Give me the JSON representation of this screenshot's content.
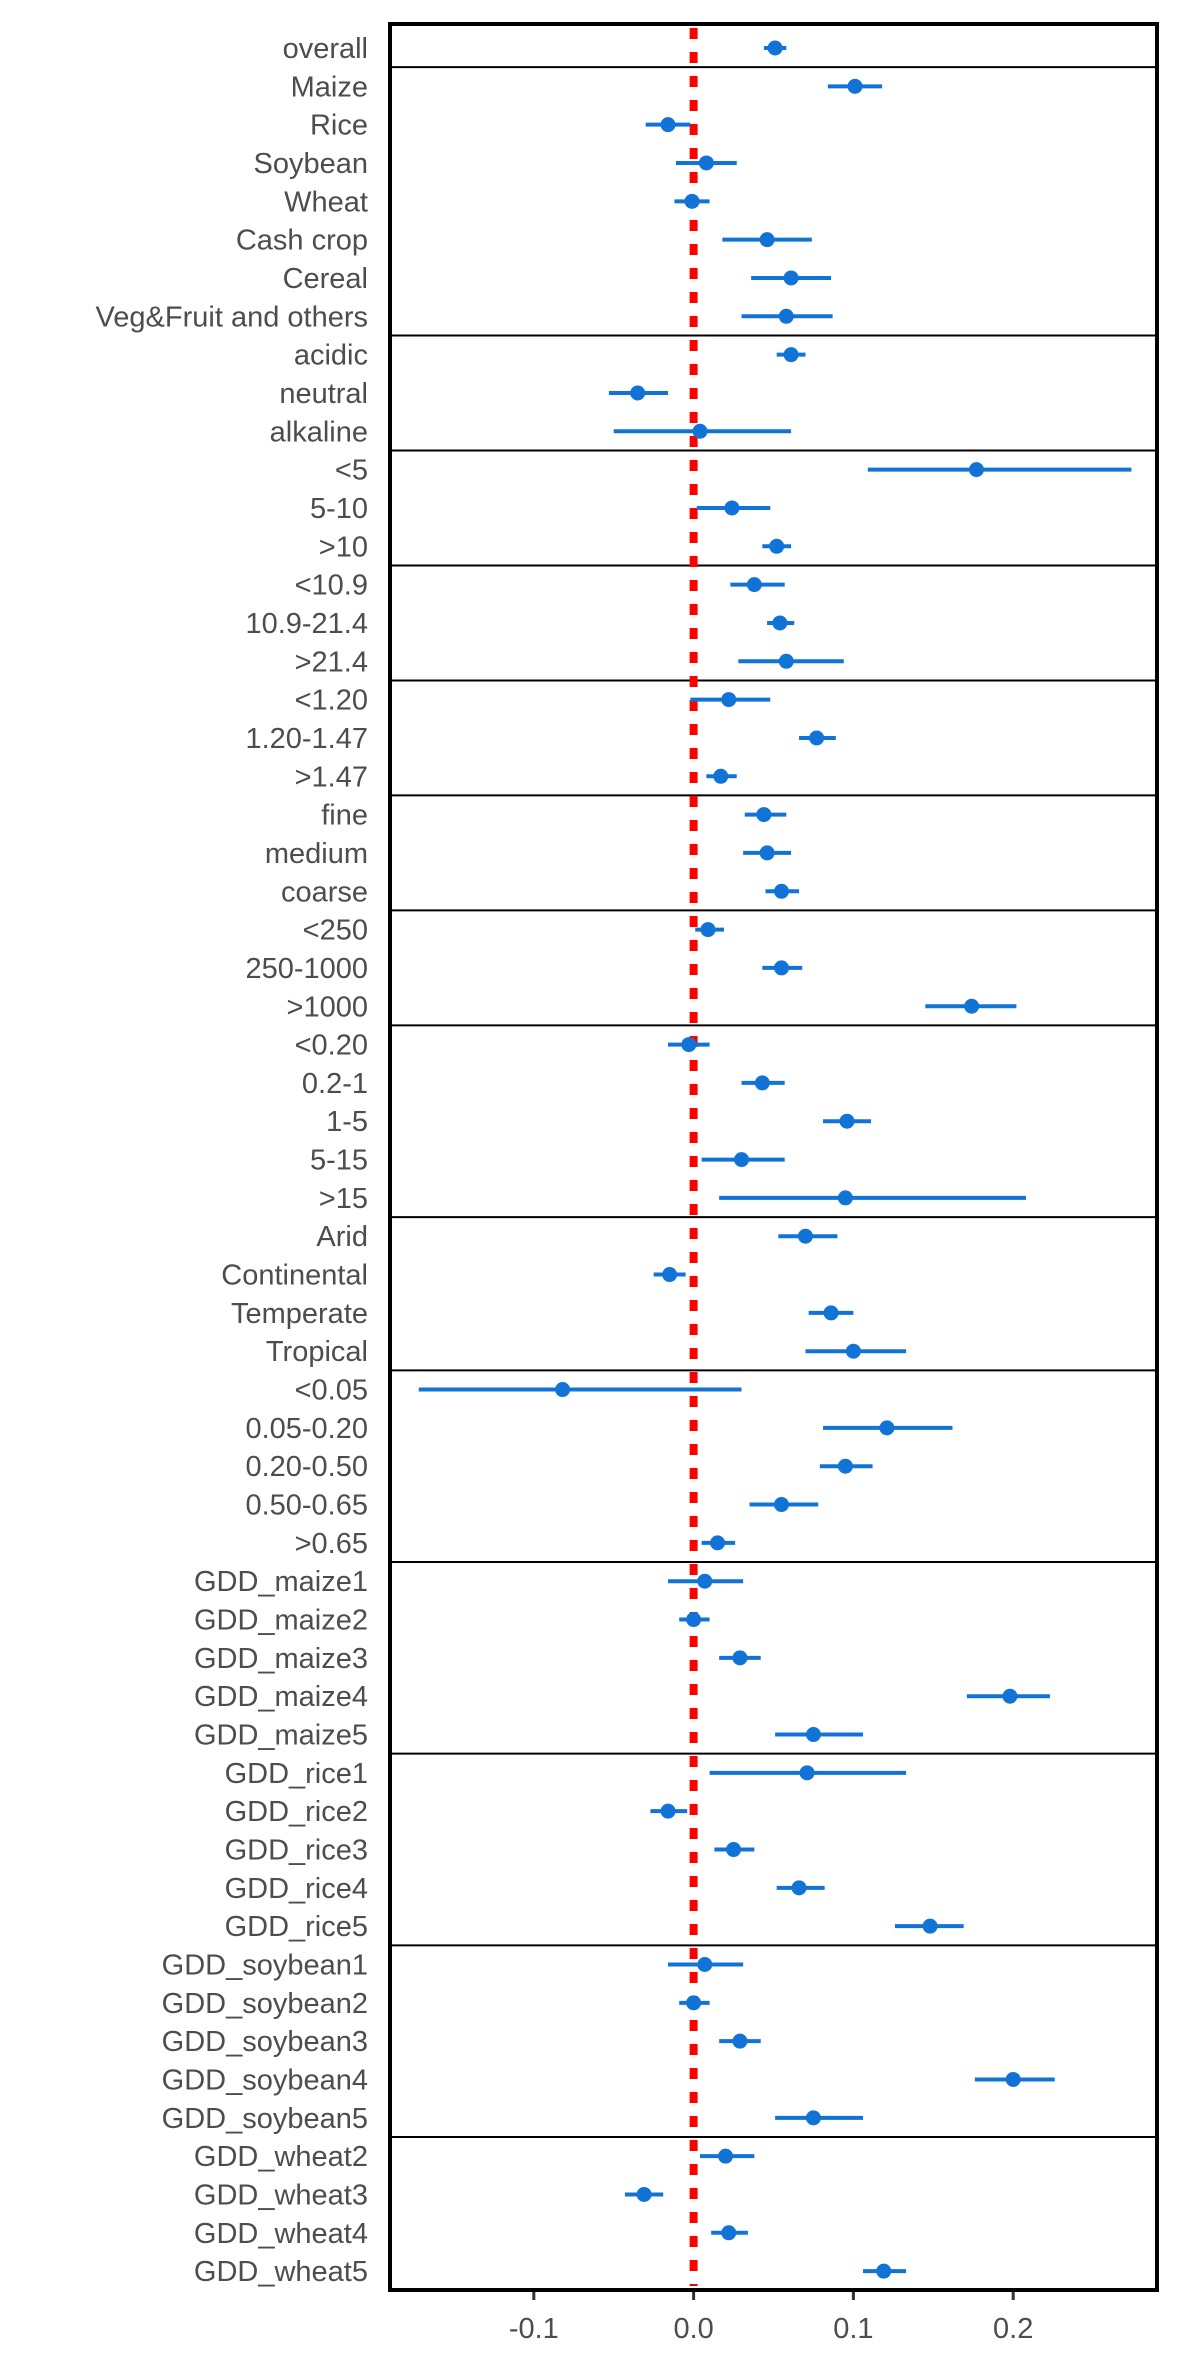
{
  "chart_data": {
    "type": "forest",
    "title": "",
    "xlabel": "",
    "ylabel": "",
    "xlim": [
      -0.19,
      0.29
    ],
    "xticks": [
      -0.1,
      0.0,
      0.1,
      0.2
    ],
    "xtick_labels": [
      "-0.1",
      "0.0",
      "0.1",
      "0.2"
    ],
    "reference_line": 0,
    "colors": {
      "point": "#1273d6",
      "reference": "#ff0000",
      "frame": "#000000"
    },
    "groups": [
      {
        "items": [
          {
            "label": "overall",
            "estimate": 0.051,
            "low": 0.044,
            "high": 0.058
          }
        ]
      },
      {
        "items": [
          {
            "label": "Maize",
            "estimate": 0.101,
            "low": 0.084,
            "high": 0.118
          },
          {
            "label": "Rice",
            "estimate": -0.016,
            "low": -0.03,
            "high": -0.002
          },
          {
            "label": "Soybean",
            "estimate": 0.008,
            "low": -0.011,
            "high": 0.027
          },
          {
            "label": "Wheat",
            "estimate": -0.001,
            "low": -0.012,
            "high": 0.01
          },
          {
            "label": "Cash crop",
            "estimate": 0.046,
            "low": 0.018,
            "high": 0.074
          },
          {
            "label": "Cereal",
            "estimate": 0.061,
            "low": 0.036,
            "high": 0.086
          },
          {
            "label": "Veg&Fruit and others",
            "estimate": 0.058,
            "low": 0.03,
            "high": 0.087
          }
        ]
      },
      {
        "items": [
          {
            "label": "acidic",
            "estimate": 0.061,
            "low": 0.052,
            "high": 0.07
          },
          {
            "label": "neutral",
            "estimate": -0.035,
            "low": -0.053,
            "high": -0.016
          },
          {
            "label": "alkaline",
            "estimate": 0.004,
            "low": -0.05,
            "high": 0.061
          }
        ]
      },
      {
        "items": [
          {
            "label": "<5",
            "estimate": 0.177,
            "low": 0.109,
            "high": 0.274
          },
          {
            "label": "5-10",
            "estimate": 0.024,
            "low": 0.002,
            "high": 0.048
          },
          {
            "label": ">10",
            "estimate": 0.052,
            "low": 0.043,
            "high": 0.061
          }
        ]
      },
      {
        "items": [
          {
            "label": "<10.9",
            "estimate": 0.038,
            "low": 0.023,
            "high": 0.057
          },
          {
            "label": "10.9-21.4",
            "estimate": 0.054,
            "low": 0.046,
            "high": 0.063
          },
          {
            "label": ">21.4",
            "estimate": 0.058,
            "low": 0.028,
            "high": 0.094
          }
        ]
      },
      {
        "items": [
          {
            "label": "<1.20",
            "estimate": 0.022,
            "low": -0.002,
            "high": 0.048
          },
          {
            "label": "1.20-1.47",
            "estimate": 0.077,
            "low": 0.066,
            "high": 0.089
          },
          {
            "label": ">1.47",
            "estimate": 0.017,
            "low": 0.008,
            "high": 0.027
          }
        ]
      },
      {
        "items": [
          {
            "label": "fine",
            "estimate": 0.044,
            "low": 0.032,
            "high": 0.058
          },
          {
            "label": "medium",
            "estimate": 0.046,
            "low": 0.031,
            "high": 0.061
          },
          {
            "label": "coarse",
            "estimate": 0.055,
            "low": 0.045,
            "high": 0.066
          }
        ]
      },
      {
        "items": [
          {
            "label": "<250",
            "estimate": 0.009,
            "low": 0.001,
            "high": 0.019
          },
          {
            "label": "250-1000",
            "estimate": 0.055,
            "low": 0.043,
            "high": 0.068
          },
          {
            "label": ">1000",
            "estimate": 0.174,
            "low": 0.145,
            "high": 0.202
          }
        ]
      },
      {
        "items": [
          {
            "label": "<0.20",
            "estimate": -0.003,
            "low": -0.016,
            "high": 0.01
          },
          {
            "label": "0.2-1",
            "estimate": 0.043,
            "low": 0.03,
            "high": 0.057
          },
          {
            "label": "1-5",
            "estimate": 0.096,
            "low": 0.081,
            "high": 0.111
          },
          {
            "label": "5-15",
            "estimate": 0.03,
            "low": 0.005,
            "high": 0.057
          },
          {
            "label": ">15",
            "estimate": 0.095,
            "low": 0.016,
            "high": 0.208
          }
        ]
      },
      {
        "items": [
          {
            "label": "Arid",
            "estimate": 0.07,
            "low": 0.053,
            "high": 0.09
          },
          {
            "label": "Continental",
            "estimate": -0.015,
            "low": -0.025,
            "high": -0.005
          },
          {
            "label": "Temperate",
            "estimate": 0.086,
            "low": 0.072,
            "high": 0.1
          },
          {
            "label": "Tropical",
            "estimate": 0.1,
            "low": 0.07,
            "high": 0.133
          }
        ]
      },
      {
        "items": [
          {
            "label": "<0.05",
            "estimate": -0.082,
            "low": -0.172,
            "high": 0.03
          },
          {
            "label": "0.05-0.20",
            "estimate": 0.121,
            "low": 0.081,
            "high": 0.162
          },
          {
            "label": "0.20-0.50",
            "estimate": 0.095,
            "low": 0.079,
            "high": 0.112
          },
          {
            "label": "0.50-0.65",
            "estimate": 0.055,
            "low": 0.035,
            "high": 0.078
          },
          {
            "label": ">0.65",
            "estimate": 0.015,
            "low": 0.005,
            "high": 0.026
          }
        ]
      },
      {
        "items": [
          {
            "label": "GDD_maize1",
            "estimate": 0.007,
            "low": -0.016,
            "high": 0.031
          },
          {
            "label": "GDD_maize2",
            "estimate": 0.0,
            "low": -0.009,
            "high": 0.01
          },
          {
            "label": "GDD_maize3",
            "estimate": 0.029,
            "low": 0.016,
            "high": 0.042
          },
          {
            "label": "GDD_maize4",
            "estimate": 0.198,
            "low": 0.171,
            "high": 0.223
          },
          {
            "label": "GDD_maize5",
            "estimate": 0.075,
            "low": 0.051,
            "high": 0.106
          }
        ]
      },
      {
        "items": [
          {
            "label": "GDD_rice1",
            "estimate": 0.071,
            "low": 0.01,
            "high": 0.133
          },
          {
            "label": "GDD_rice2",
            "estimate": -0.016,
            "low": -0.027,
            "high": -0.004
          },
          {
            "label": "GDD_rice3",
            "estimate": 0.025,
            "low": 0.013,
            "high": 0.038
          },
          {
            "label": "GDD_rice4",
            "estimate": 0.066,
            "low": 0.052,
            "high": 0.082
          },
          {
            "label": "GDD_rice5",
            "estimate": 0.148,
            "low": 0.126,
            "high": 0.169
          }
        ]
      },
      {
        "items": [
          {
            "label": "GDD_soybean1",
            "estimate": 0.007,
            "low": -0.016,
            "high": 0.031
          },
          {
            "label": "GDD_soybean2",
            "estimate": 0.0,
            "low": -0.009,
            "high": 0.01
          },
          {
            "label": "GDD_soybean3",
            "estimate": 0.029,
            "low": 0.016,
            "high": 0.042
          },
          {
            "label": "GDD_soybean4",
            "estimate": 0.2,
            "low": 0.176,
            "high": 0.226
          },
          {
            "label": "GDD_soybean5",
            "estimate": 0.075,
            "low": 0.051,
            "high": 0.106
          }
        ]
      },
      {
        "items": [
          {
            "label": "GDD_wheat2",
            "estimate": 0.02,
            "low": 0.004,
            "high": 0.038
          },
          {
            "label": "GDD_wheat3",
            "estimate": -0.031,
            "low": -0.043,
            "high": -0.019
          },
          {
            "label": "GDD_wheat4",
            "estimate": 0.022,
            "low": 0.011,
            "high": 0.034
          },
          {
            "label": "GDD_wheat5",
            "estimate": 0.119,
            "low": 0.106,
            "high": 0.133
          }
        ]
      }
    ]
  }
}
